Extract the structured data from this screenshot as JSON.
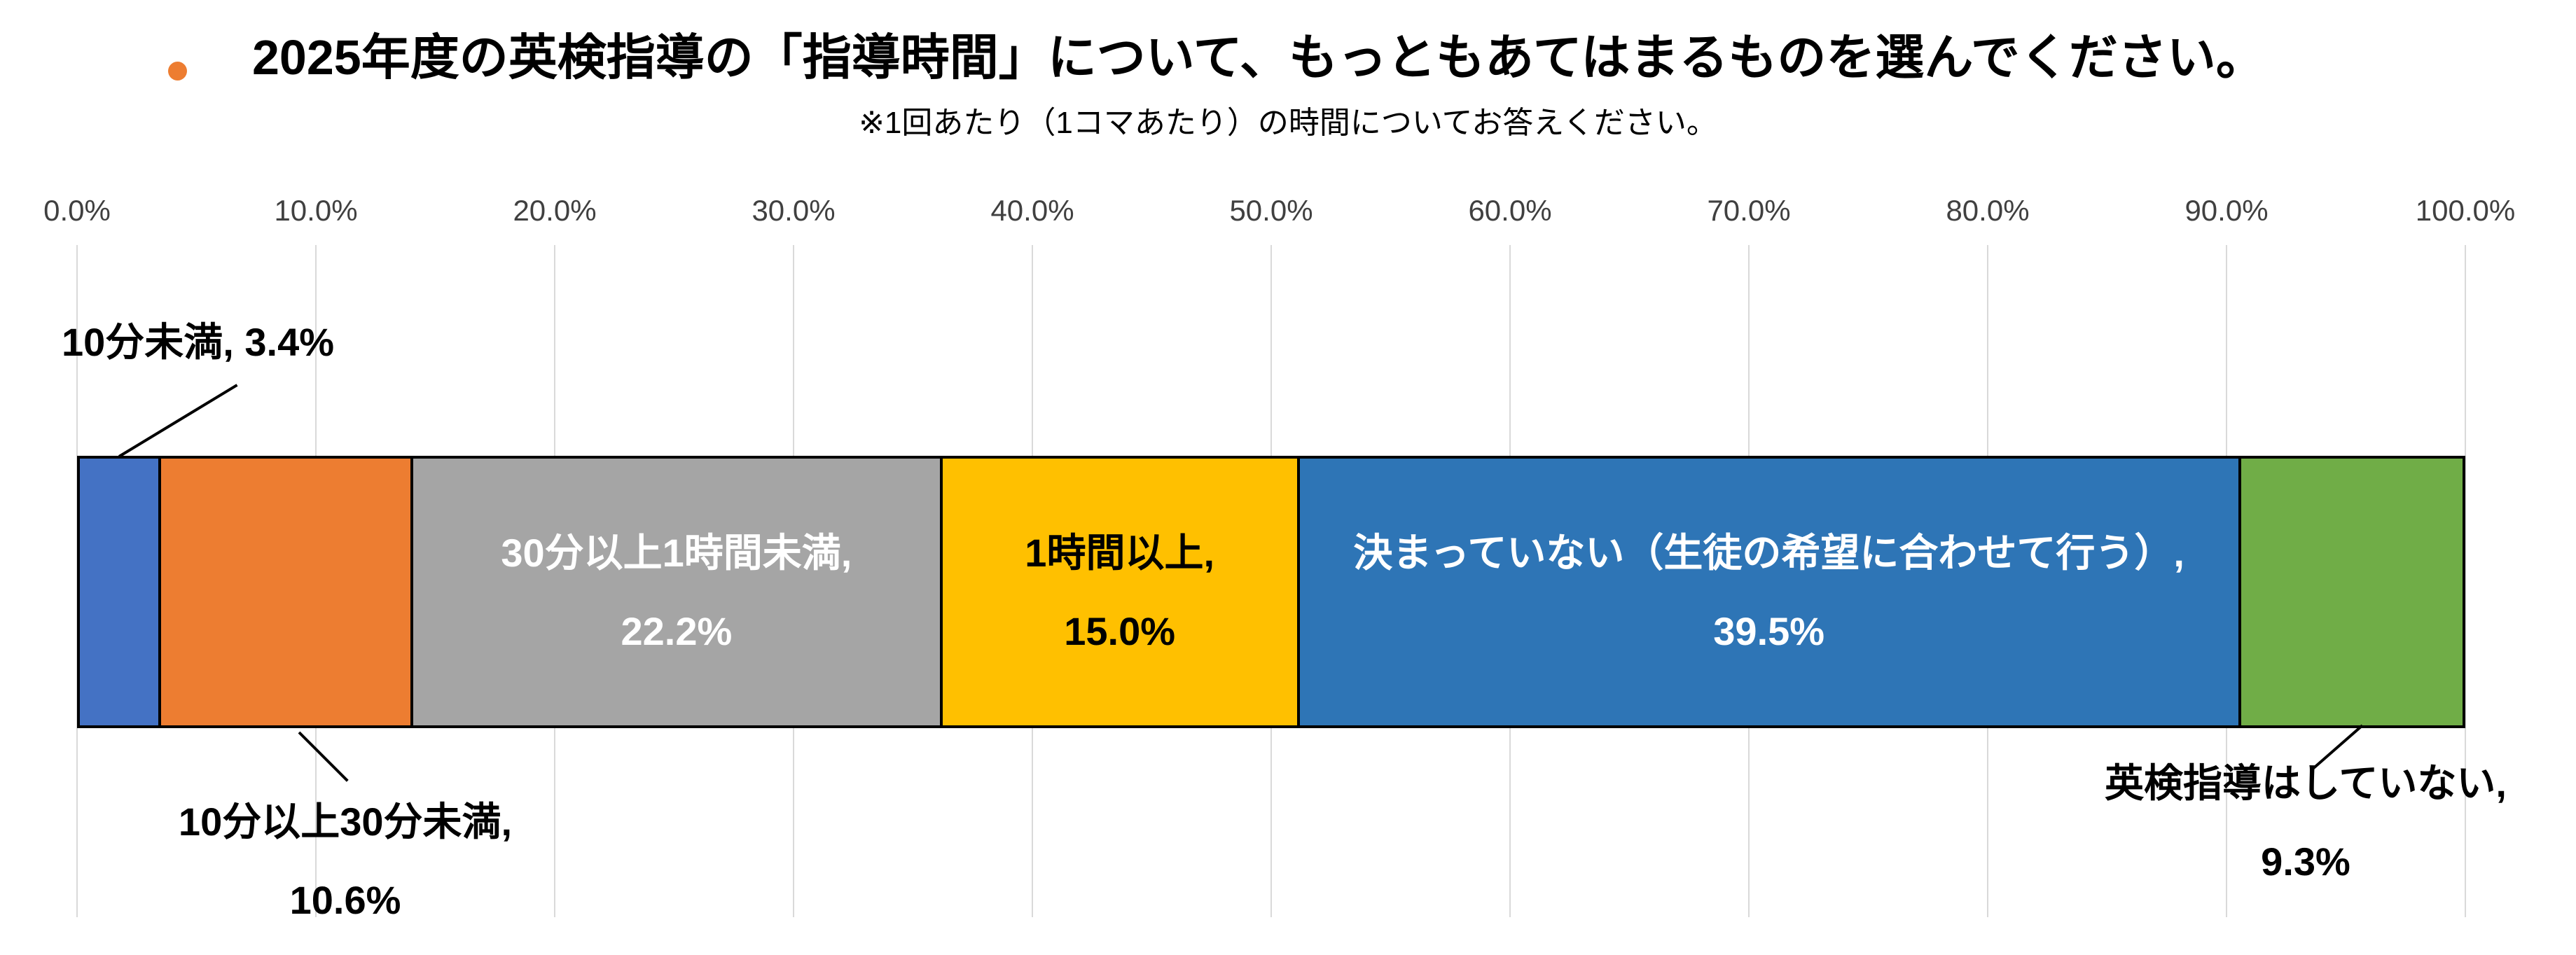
{
  "title": {
    "text": "2025年度の英検指導の「指導時間」について、もっともあてはまるものを選んでください。",
    "bullet_color": "#ED7D31"
  },
  "subtitle": "※1回あたり（1コマあたり）の時間についてお答えください。",
  "colors": {
    "gridline": "#D9D9D9",
    "bar_border": "#000000",
    "axis_text": "#404040"
  },
  "chart_data": {
    "type": "bar",
    "subtype": "horizontal-100pct-stacked",
    "title": "2025年度の英検指導の「指導時間」について、もっともあてはまるものを選んでください。",
    "subtitle": "※1回あたり（1コマあたり）の時間についてお答えください。",
    "xlabel": "",
    "ylabel": "",
    "x_range": [
      0,
      100
    ],
    "grid": true,
    "x_ticks": [
      "0.0%",
      "10.0%",
      "20.0%",
      "30.0%",
      "40.0%",
      "50.0%",
      "60.0%",
      "70.0%",
      "80.0%",
      "90.0%",
      "100.0%"
    ],
    "segments": [
      {
        "label": "10分未満",
        "value": 3.4,
        "value_label": "3.4%",
        "color": "#4472C4",
        "text_color": "#000000",
        "label_placement": "outside-top"
      },
      {
        "label": "10分以上30分未満",
        "value": 10.6,
        "value_label": "10.6%",
        "color": "#ED7D31",
        "text_color": "#000000",
        "label_placement": "outside-bottom"
      },
      {
        "label": "30分以上1時間未満",
        "value": 22.2,
        "value_label": "22.2%",
        "color": "#A5A5A5",
        "text_color": "#FFFFFF",
        "label_placement": "inside"
      },
      {
        "label": "1時間以上",
        "value": 15.0,
        "value_label": "15.0%",
        "color": "#FFC000",
        "text_color": "#000000",
        "label_placement": "inside"
      },
      {
        "label": "決まっていない（生徒の希望に合わせて行う）",
        "value": 39.5,
        "value_label": "39.5%",
        "color": "#2E75B6",
        "text_color": "#FFFFFF",
        "label_placement": "inside"
      },
      {
        "label": "英検指導はしていない",
        "value": 9.3,
        "value_label": "9.3%",
        "color": "#70AD47",
        "text_color": "#000000",
        "label_placement": "outside-bottom"
      }
    ]
  }
}
